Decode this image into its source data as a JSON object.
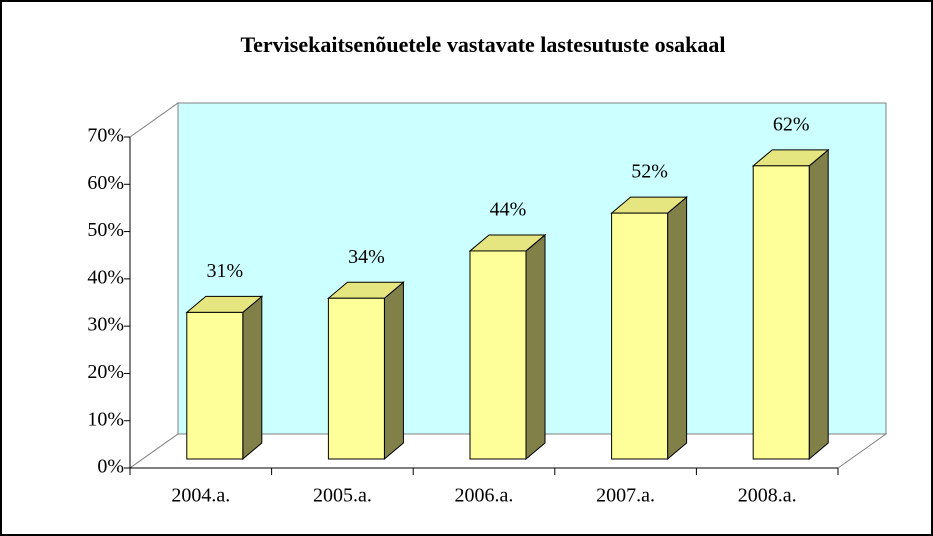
{
  "chart_data": {
    "type": "bar3d",
    "title": "Tervisekaitsenõuetele vastavate lastesutuste osakaal",
    "categories": [
      "2004.a.",
      "2005.a.",
      "2006.a.",
      "2007.a.",
      "2008.a."
    ],
    "values": [
      31,
      34,
      44,
      52,
      62
    ],
    "value_labels": [
      "31%",
      "34%",
      "44%",
      "52%",
      "62%"
    ],
    "color": "#ffff99",
    "wall_color": "#ccffff",
    "ylim": [
      0,
      70
    ],
    "yticks": [
      {
        "value": 0,
        "label": "0%"
      },
      {
        "value": 10,
        "label": "10%"
      },
      {
        "value": 20,
        "label": "20%"
      },
      {
        "value": 30,
        "label": "30%"
      },
      {
        "value": 40,
        "label": "40%"
      },
      {
        "value": 50,
        "label": "50%"
      },
      {
        "value": 60,
        "label": "60%"
      },
      {
        "value": 70,
        "label": "70%"
      }
    ]
  }
}
